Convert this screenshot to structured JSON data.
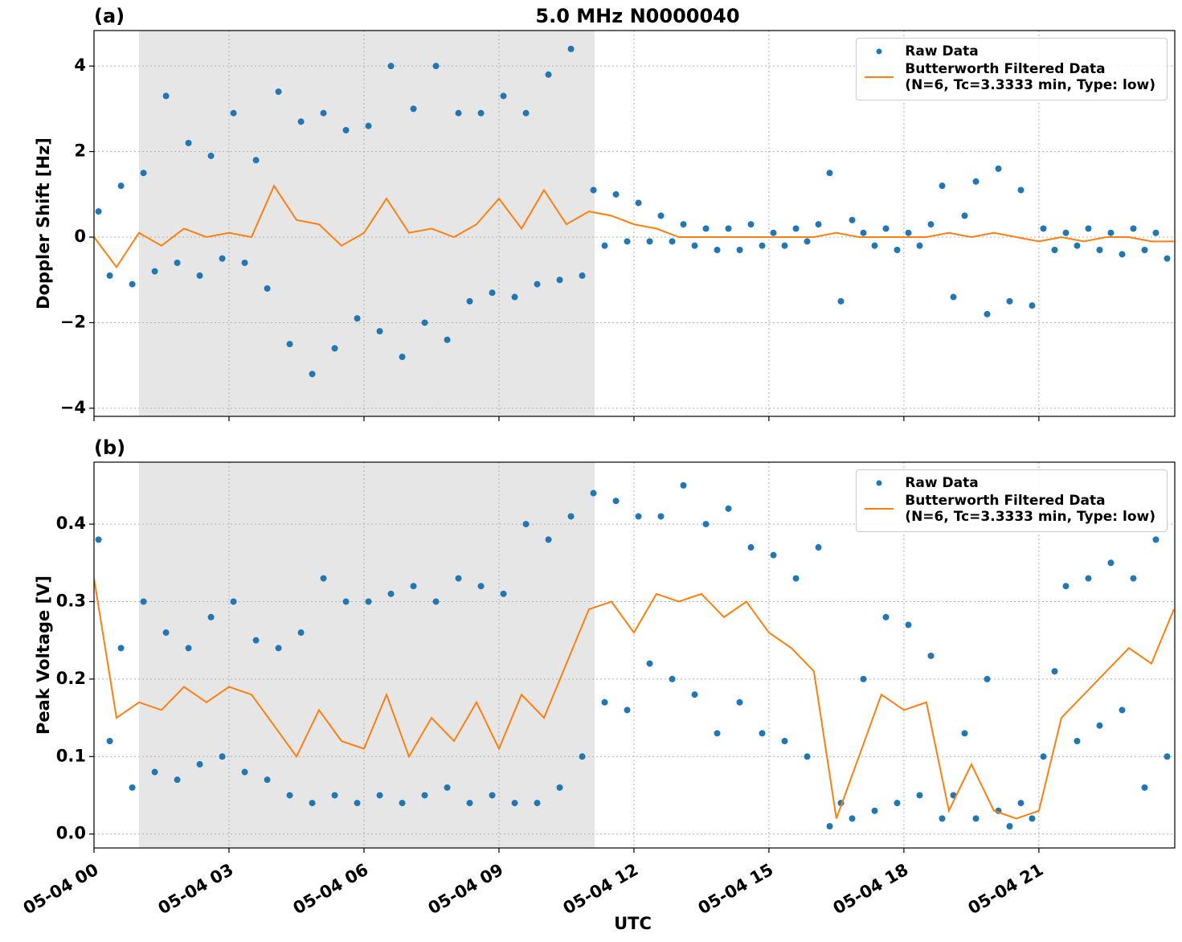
{
  "chart_data": [
    {
      "type": "scatter-line",
      "title": "5.0 MHz N0000040",
      "panel_label": "(a)",
      "ylabel": "Doppler Shift [Hz]",
      "xlim": [
        0,
        24.02
      ],
      "ylim": [
        -4.19,
        4.83
      ],
      "xticks": [
        0,
        3,
        6,
        9,
        12,
        15,
        18,
        21
      ],
      "yticks": [
        {
          "value": -4,
          "label": "−4"
        },
        {
          "value": -2,
          "label": "−2"
        },
        0,
        2,
        4
      ],
      "grid": true,
      "legend": "upper right",
      "shaded_span": [
        1.0,
        11.13
      ],
      "shade_color": "#e6e6e6",
      "series": [
        {
          "name": "Raw Data",
          "color": "#1f77b4",
          "kind": "points",
          "x": [
            0.1,
            0.35,
            0.6,
            0.85,
            1.1,
            1.35,
            1.6,
            1.85,
            2.1,
            2.35,
            2.6,
            2.85,
            3.1,
            3.35,
            3.6,
            3.85,
            4.1,
            4.35,
            4.6,
            4.85,
            5.1,
            5.35,
            5.6,
            5.85,
            6.1,
            6.35,
            6.6,
            6.85,
            7.1,
            7.35,
            7.6,
            7.85,
            8.1,
            8.35,
            8.6,
            8.85,
            9.1,
            9.35,
            9.6,
            9.85,
            10.1,
            10.35,
            10.6,
            10.85,
            11.1,
            11.35,
            11.6,
            11.85,
            12.1,
            12.35,
            12.6,
            12.85,
            13.1,
            13.35,
            13.6,
            13.85,
            14.1,
            14.35,
            14.6,
            14.85,
            15.1,
            15.35,
            15.6,
            15.85,
            16.1,
            16.35,
            16.6,
            16.85,
            17.1,
            17.35,
            17.6,
            17.85,
            18.1,
            18.35,
            18.6,
            18.85,
            19.1,
            19.35,
            19.6,
            19.85,
            20.1,
            20.35,
            20.6,
            20.85,
            21.1,
            21.35,
            21.6,
            21.85,
            22.1,
            22.35,
            22.6,
            22.85,
            23.1,
            23.35,
            23.6,
            23.85
          ],
          "values": [
            0.6,
            -0.9,
            1.2,
            -1.1,
            1.5,
            -0.8,
            3.3,
            -0.6,
            2.2,
            -0.9,
            1.9,
            -0.5,
            2.9,
            -0.6,
            1.8,
            -1.2,
            3.4,
            -2.5,
            2.7,
            -3.2,
            2.9,
            -2.6,
            2.5,
            -1.9,
            2.6,
            -2.2,
            4.0,
            -2.8,
            3.0,
            -2.0,
            4.0,
            -2.4,
            2.9,
            -1.5,
            2.9,
            -1.3,
            3.3,
            -1.4,
            2.9,
            -1.1,
            3.8,
            -1.0,
            4.4,
            -0.9,
            1.1,
            -0.2,
            1.0,
            -0.1,
            0.8,
            -0.1,
            0.5,
            -0.1,
            0.3,
            -0.2,
            0.2,
            -0.3,
            0.2,
            -0.3,
            0.3,
            -0.2,
            0.1,
            -0.2,
            0.2,
            -0.1,
            0.3,
            1.5,
            -1.5,
            0.4,
            0.1,
            -0.2,
            0.2,
            -0.3,
            0.1,
            -0.2,
            0.3,
            1.2,
            -1.4,
            0.5,
            1.3,
            -1.8,
            1.6,
            -1.5,
            1.1,
            -1.6,
            0.2,
            -0.3,
            0.1,
            -0.2,
            0.2,
            -0.3,
            0.1,
            -0.4,
            0.2,
            -0.3,
            0.1,
            -0.5
          ]
        },
        {
          "name": "Butterworth Filtered Data\n(N=6, Tc=3.3333 min, Type: low)",
          "color": "#ff7f0e",
          "kind": "line",
          "x": [
            0,
            0.5,
            1,
            1.5,
            2,
            2.5,
            3,
            3.5,
            4,
            4.5,
            5,
            5.5,
            6,
            6.5,
            7,
            7.5,
            8,
            8.5,
            9,
            9.5,
            10,
            10.5,
            11,
            11.5,
            12,
            12.5,
            13,
            13.5,
            14,
            14.5,
            15,
            15.5,
            16,
            16.5,
            17,
            17.5,
            18,
            18.5,
            19,
            19.5,
            20,
            20.5,
            21,
            21.5,
            22,
            22.5,
            23,
            23.5,
            24
          ],
          "values": [
            0.0,
            -0.7,
            0.1,
            -0.2,
            0.2,
            0.0,
            0.1,
            0.0,
            1.2,
            0.4,
            0.3,
            -0.2,
            0.1,
            0.9,
            0.1,
            0.2,
            0.0,
            0.3,
            0.9,
            0.2,
            1.1,
            0.3,
            0.6,
            0.5,
            0.3,
            0.2,
            0.0,
            0.0,
            0.0,
            0.0,
            0.0,
            0.0,
            0.0,
            0.1,
            0.0,
            0.0,
            0.0,
            0.0,
            0.1,
            0.0,
            0.1,
            0.0,
            -0.1,
            0.0,
            -0.1,
            0.0,
            0.0,
            -0.1,
            -0.1
          ]
        }
      ]
    },
    {
      "type": "scatter-line",
      "panel_label": "(b)",
      "ylabel": "Peak Voltage [V]",
      "xlabel": "UTC",
      "xlim": [
        0,
        24.02
      ],
      "ylim": [
        -0.018,
        0.48
      ],
      "xticks": [
        {
          "value": 0,
          "label": "05-04 00"
        },
        {
          "value": 3,
          "label": "05-04 03"
        },
        {
          "value": 6,
          "label": "05-04 06"
        },
        {
          "value": 9,
          "label": "05-04 09"
        },
        {
          "value": 12,
          "label": "05-04 12"
        },
        {
          "value": 15,
          "label": "05-04 15"
        },
        {
          "value": 18,
          "label": "05-04 18"
        },
        {
          "value": 21,
          "label": "05-04 21"
        }
      ],
      "yticks": [
        {
          "value": 0,
          "label": "0.0"
        },
        0.1,
        0.2,
        0.3,
        0.4
      ],
      "grid": true,
      "legend": "upper right",
      "shaded_span": [
        1.0,
        11.13
      ],
      "shade_color": "#e6e6e6",
      "series": [
        {
          "name": "Raw Data",
          "color": "#1f77b4",
          "kind": "points",
          "x": [
            0.1,
            0.35,
            0.6,
            0.85,
            1.1,
            1.35,
            1.6,
            1.85,
            2.1,
            2.35,
            2.6,
            2.85,
            3.1,
            3.35,
            3.6,
            3.85,
            4.1,
            4.35,
            4.6,
            4.85,
            5.1,
            5.35,
            5.6,
            5.85,
            6.1,
            6.35,
            6.6,
            6.85,
            7.1,
            7.35,
            7.6,
            7.85,
            8.1,
            8.35,
            8.6,
            8.85,
            9.1,
            9.35,
            9.6,
            9.85,
            10.1,
            10.35,
            10.6,
            10.85,
            11.1,
            11.35,
            11.6,
            11.85,
            12.1,
            12.35,
            12.6,
            12.85,
            13.1,
            13.35,
            13.6,
            13.85,
            14.1,
            14.35,
            14.6,
            14.85,
            15.1,
            15.35,
            15.6,
            15.85,
            16.1,
            16.35,
            16.6,
            16.85,
            17.1,
            17.35,
            17.6,
            17.85,
            18.1,
            18.35,
            18.6,
            18.85,
            19.1,
            19.35,
            19.6,
            19.85,
            20.1,
            20.35,
            20.6,
            20.85,
            21.1,
            21.35,
            21.6,
            21.85,
            22.1,
            22.35,
            22.6,
            22.85,
            23.1,
            23.35,
            23.6,
            23.85
          ],
          "values": [
            0.38,
            0.12,
            0.24,
            0.06,
            0.3,
            0.08,
            0.26,
            0.07,
            0.24,
            0.09,
            0.28,
            0.1,
            0.3,
            0.08,
            0.25,
            0.07,
            0.24,
            0.05,
            0.26,
            0.04,
            0.33,
            0.05,
            0.3,
            0.04,
            0.3,
            0.05,
            0.31,
            0.04,
            0.32,
            0.05,
            0.3,
            0.06,
            0.33,
            0.04,
            0.32,
            0.05,
            0.31,
            0.04,
            0.4,
            0.04,
            0.38,
            0.06,
            0.41,
            0.1,
            0.44,
            0.17,
            0.43,
            0.16,
            0.41,
            0.22,
            0.41,
            0.2,
            0.45,
            0.18,
            0.4,
            0.13,
            0.42,
            0.17,
            0.37,
            0.13,
            0.36,
            0.12,
            0.33,
            0.1,
            0.37,
            0.01,
            0.04,
            0.02,
            0.2,
            0.03,
            0.28,
            0.04,
            0.27,
            0.05,
            0.23,
            0.02,
            0.05,
            0.13,
            0.02,
            0.2,
            0.03,
            0.01,
            0.04,
            0.02,
            0.1,
            0.21,
            0.32,
            0.12,
            0.33,
            0.14,
            0.35,
            0.16,
            0.33,
            0.06,
            0.38,
            0.1
          ]
        },
        {
          "name": "Butterworth Filtered Data\n(N=6, Tc=3.3333 min, Type: low)",
          "color": "#ff7f0e",
          "kind": "line",
          "x": [
            0,
            0.5,
            1,
            1.5,
            2,
            2.5,
            3,
            3.5,
            4,
            4.5,
            5,
            5.5,
            6,
            6.5,
            7,
            7.5,
            8,
            8.5,
            9,
            9.5,
            10,
            10.5,
            11,
            11.5,
            12,
            12.5,
            13,
            13.5,
            14,
            14.5,
            15,
            15.5,
            16,
            16.5,
            17,
            17.5,
            18,
            18.5,
            19,
            19.5,
            20,
            20.5,
            21,
            21.5,
            22,
            22.5,
            23,
            23.5,
            24
          ],
          "values": [
            0.33,
            0.15,
            0.17,
            0.16,
            0.19,
            0.17,
            0.19,
            0.18,
            0.14,
            0.1,
            0.16,
            0.12,
            0.11,
            0.18,
            0.1,
            0.15,
            0.12,
            0.17,
            0.11,
            0.18,
            0.15,
            0.22,
            0.29,
            0.3,
            0.26,
            0.31,
            0.3,
            0.31,
            0.28,
            0.3,
            0.26,
            0.24,
            0.21,
            0.02,
            0.1,
            0.18,
            0.16,
            0.17,
            0.03,
            0.09,
            0.03,
            0.02,
            0.03,
            0.15,
            0.18,
            0.21,
            0.24,
            0.22,
            0.29
          ]
        }
      ]
    }
  ]
}
